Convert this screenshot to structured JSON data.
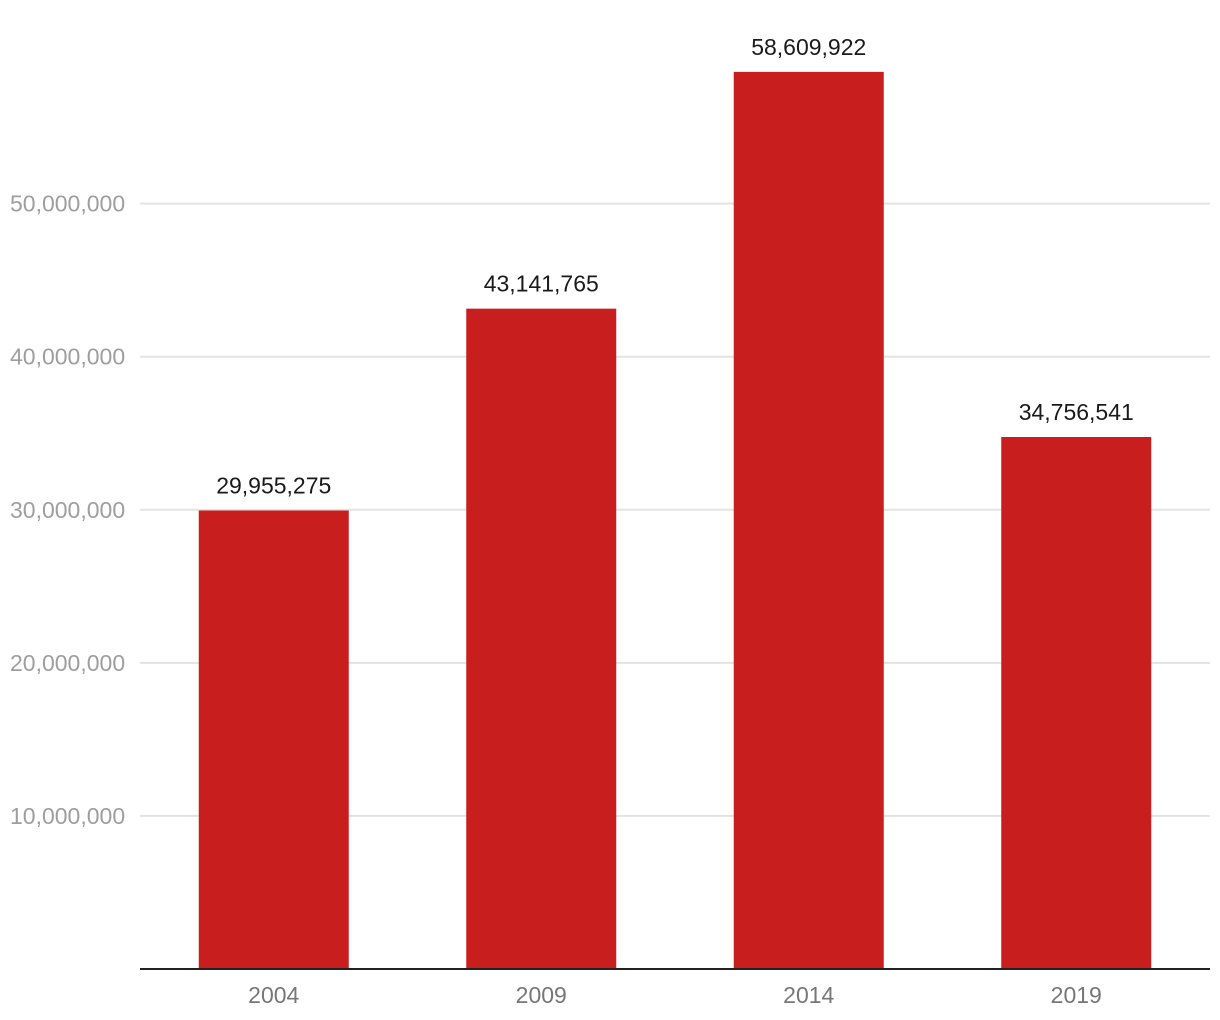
{
  "chart_data": {
    "type": "bar",
    "categories": [
      "2004",
      "2009",
      "2014",
      "2019"
    ],
    "values": [
      29955275,
      43141765,
      58609922,
      34756541
    ],
    "value_labels": [
      "29,955,275",
      "43,141,765",
      "58,609,922",
      "34,756,541"
    ],
    "y_ticks": [
      10000000,
      20000000,
      30000000,
      40000000,
      50000000
    ],
    "y_tick_labels": [
      "10,000,000",
      "20,000,000",
      "30,000,000",
      "40,000,000",
      "50,000,000"
    ],
    "ylim": [
      0,
      62000000
    ],
    "title": "",
    "xlabel": "",
    "ylabel": "",
    "grid": true,
    "legend": "none",
    "bar_color": "#c81e1e"
  }
}
